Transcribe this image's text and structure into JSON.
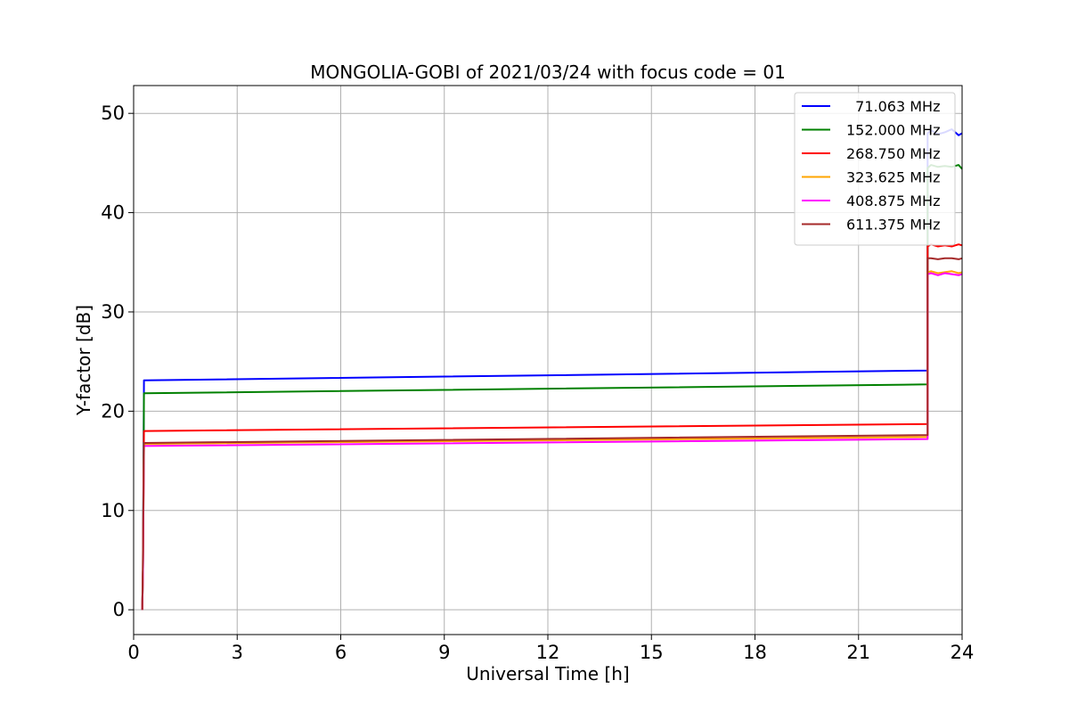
{
  "chart_data": {
    "type": "line",
    "title": "MONGOLIA-GOBI of 2021/03/24 with focus code = 01",
    "xlabel": "Universal Time [h]",
    "ylabel": "Y-factor [dB]",
    "xlim": [
      0,
      24
    ],
    "ylim": [
      -2.5,
      52.8
    ],
    "xticks": [
      0,
      3,
      6,
      9,
      12,
      15,
      18,
      21,
      24
    ],
    "yticks": [
      0,
      10,
      20,
      30,
      40,
      50
    ],
    "grid": true,
    "legend_position": "upper-right",
    "series": [
      {
        "name": "  71.063 MHz",
        "color": "#0000ff",
        "x": [
          0.25,
          0.27,
          0.3,
          23.0,
          23.0,
          23.1,
          23.3,
          23.5,
          23.7,
          23.9,
          24.0
        ],
        "y": [
          0,
          4,
          23.1,
          24.1,
          48.0,
          48.3,
          47.9,
          48.1,
          48.4,
          47.8,
          48.0
        ]
      },
      {
        "name": "152.000 MHz",
        "color": "#008000",
        "x": [
          0.25,
          0.27,
          0.3,
          23.0,
          23.0,
          23.1,
          23.3,
          23.5,
          23.7,
          23.9,
          24.0
        ],
        "y": [
          0,
          4,
          21.8,
          22.7,
          44.5,
          44.8,
          44.6,
          44.7,
          44.6,
          44.8,
          44.4
        ]
      },
      {
        "name": "268.750 MHz",
        "color": "#ff0000",
        "x": [
          0.25,
          0.27,
          0.3,
          23.0,
          23.0,
          23.1,
          23.3,
          23.5,
          23.7,
          23.9,
          24.0
        ],
        "y": [
          0,
          4,
          18.0,
          18.7,
          36.6,
          36.8,
          36.6,
          36.7,
          36.6,
          36.8,
          36.7
        ]
      },
      {
        "name": "323.625 MHz",
        "color": "#ffa500",
        "x": [
          0.25,
          0.27,
          0.3,
          23.0,
          23.0,
          23.1,
          23.3,
          23.5,
          23.7,
          23.9,
          24.0
        ],
        "y": [
          0,
          4,
          16.7,
          17.4,
          34.0,
          34.1,
          33.9,
          34.0,
          34.1,
          33.9,
          34.0
        ]
      },
      {
        "name": "408.875 MHz",
        "color": "#ff00ff",
        "x": [
          0.25,
          0.27,
          0.3,
          23.0,
          23.0,
          23.1,
          23.3,
          23.5,
          23.7,
          23.9,
          24.0
        ],
        "y": [
          0,
          4,
          16.5,
          17.2,
          33.8,
          33.9,
          33.7,
          33.9,
          33.8,
          33.7,
          33.8
        ]
      },
      {
        "name": "611.375 MHz",
        "color": "#a52a2a",
        "x": [
          0.25,
          0.27,
          0.3,
          23.0,
          23.0,
          23.1,
          23.3,
          23.5,
          23.7,
          23.9,
          24.0
        ],
        "y": [
          0,
          6,
          16.8,
          17.6,
          35.4,
          35.4,
          35.3,
          35.4,
          35.4,
          35.3,
          35.4
        ]
      }
    ]
  }
}
